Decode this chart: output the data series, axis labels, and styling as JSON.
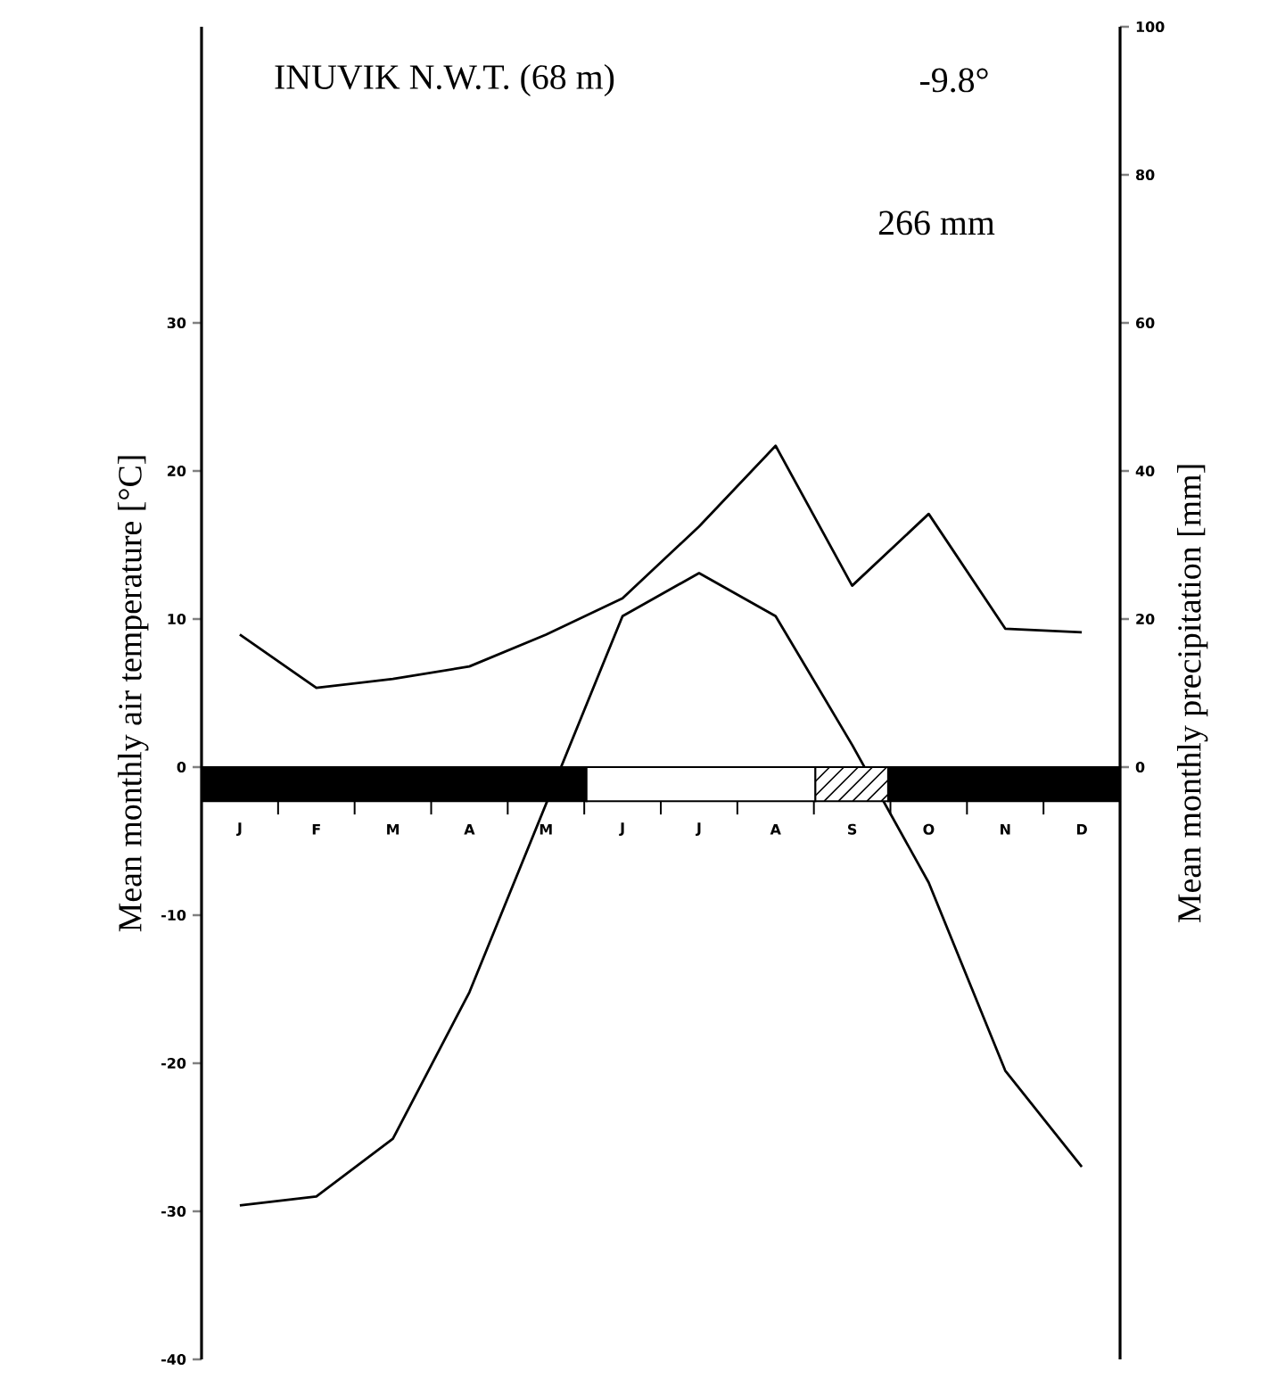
{
  "chart_data": {
    "type": "line",
    "title": "INUVIK N.W.T. (68 m)",
    "annotations": [
      "-9.8°",
      "266 mm"
    ],
    "ylabel": "Mean monthly air temperature [°C]",
    "y2label": "Mean monthly precipitation [mm]",
    "categories": [
      "J",
      "F",
      "M",
      "A",
      "M",
      "J",
      "J",
      "A",
      "S",
      "O",
      "N",
      "D"
    ],
    "series": [
      {
        "color": "#000000",
        "values": [
          -29.6,
          -29,
          -25.1,
          -15.2,
          -2.5,
          10.2,
          13.1,
          10.2,
          1.5,
          -7.8,
          -20.5,
          -27
        ]
      },
      {
        "color": "#000000",
        "axis": "y2",
        "values": [
          17.9,
          10.7,
          11.9,
          13.6,
          17.9,
          22.8,
          32.5,
          43.4,
          24.5,
          34.2,
          18.7,
          18.2
        ]
      }
    ],
    "ylim": [
      -40,
      50
    ],
    "yticks": [
      -40,
      -30,
      -20,
      -10,
      0,
      10,
      20,
      30
    ],
    "y2lim": [
      -80,
      100
    ],
    "y2ticks": [
      0,
      20,
      40,
      60,
      80,
      100
    ],
    "grid": false,
    "marker": "none",
    "line_style": "solid"
  }
}
